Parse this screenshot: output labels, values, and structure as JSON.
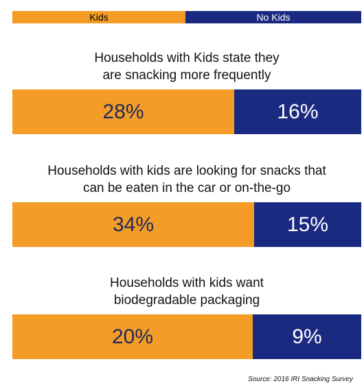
{
  "colors": {
    "kids": "#F39C26",
    "no_kids": "#1A2A80",
    "kids_text": "#1F2A5C",
    "no_kids_text": "#FFFFFF"
  },
  "legend": {
    "kids": "Kids",
    "no_kids": "No Kids"
  },
  "chart_data": {
    "type": "bar",
    "stacked": true,
    "orientation": "horizontal",
    "categories": [
      "Households with Kids state they\nare snacking more frequently",
      "Households with kids are looking for snacks that\ncan be eaten in the car or on-the-go",
      "Households with kids want\nbiodegradable packaging"
    ],
    "series": [
      {
        "name": "Kids",
        "values": [
          28,
          34,
          20
        ],
        "labels": [
          "28%",
          "34%",
          "20%"
        ]
      },
      {
        "name": "No Kids",
        "values": [
          16,
          15,
          9
        ],
        "labels": [
          "16%",
          "15%",
          "9%"
        ]
      }
    ]
  },
  "source": "Source: 2016 IRI Snacking Survey"
}
